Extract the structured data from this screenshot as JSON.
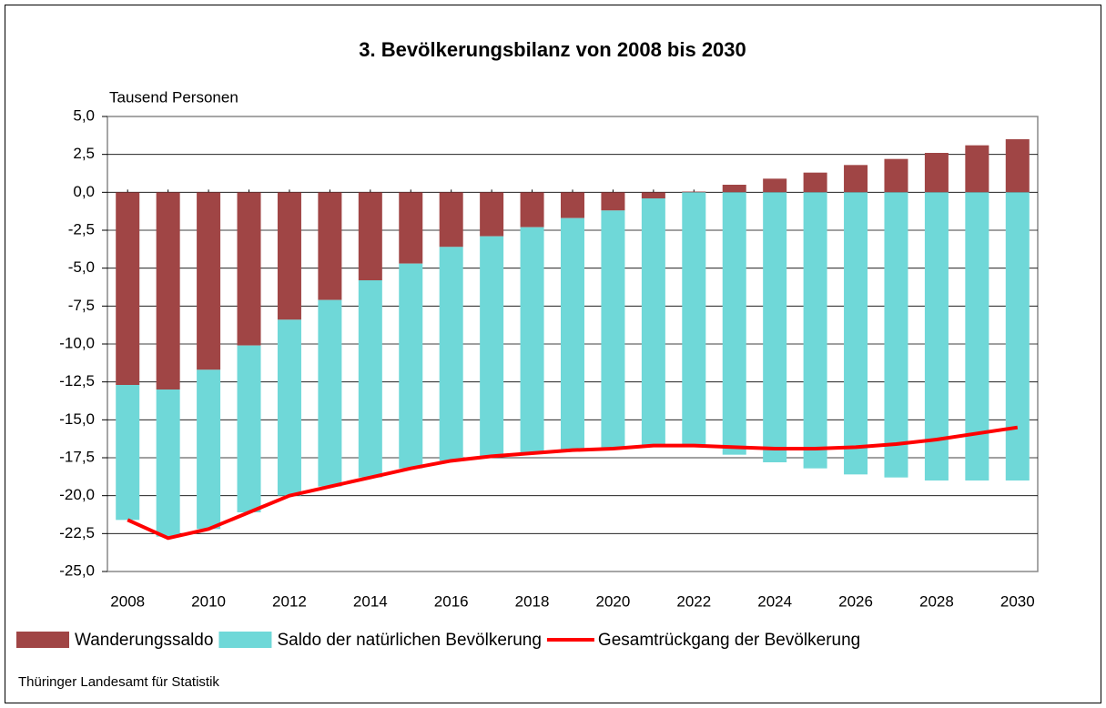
{
  "chart_data": {
    "type": "bar",
    "stacked": true,
    "title": "3. Bevölkerungsbilanz von 2008 bis 2030",
    "y_axis_label": "Tausend Personen",
    "source": "Thüringer Landesamt für Statistik",
    "categories": [
      "2008",
      null,
      "2010",
      null,
      "2012",
      null,
      "2014",
      null,
      "2016",
      null,
      "2018",
      null,
      "2020",
      null,
      "2022",
      null,
      "2024",
      null,
      "2026",
      null,
      "2028",
      null,
      "2030"
    ],
    "series": [
      {
        "name": "Wanderungssaldo",
        "color": "#a04545",
        "values": [
          -12.7,
          -13.0,
          -11.7,
          -10.1,
          -8.4,
          -7.1,
          -5.8,
          -4.7,
          -3.6,
          -2.9,
          -2.3,
          -1.7,
          -1.2,
          -0.4,
          0.05,
          0.5,
          0.9,
          1.3,
          1.8,
          2.2,
          2.6,
          3.1,
          3.5
        ]
      },
      {
        "name": "Saldo der natürlichen Bevölkerung",
        "color": "#6fd8d8",
        "values": [
          -8.9,
          -9.7,
          -10.5,
          -11.0,
          -11.6,
          -12.3,
          -13.0,
          -13.5,
          -14.1,
          -14.5,
          -14.9,
          -15.3,
          -15.7,
          -16.3,
          -16.7,
          -17.3,
          -17.8,
          -18.2,
          -18.6,
          -18.8,
          -19.0,
          -19.0,
          -19.0
        ]
      },
      {
        "name": "Gesamtrückgang der Bevölkerung",
        "type": "line",
        "color": "#ff0000",
        "values": [
          -21.6,
          -22.8,
          -22.2,
          -21.1,
          -20.0,
          -19.4,
          -18.8,
          -18.2,
          -17.7,
          -17.4,
          -17.2,
          -17.0,
          -16.9,
          -16.7,
          -16.7,
          -16.8,
          -16.9,
          -16.9,
          -16.8,
          -16.6,
          -16.3,
          -15.9,
          -15.5
        ]
      }
    ],
    "ylim": [
      -25,
      5
    ],
    "yticks": [
      {
        "value": -25,
        "label": "-25,0"
      },
      {
        "value": -22.5,
        "label": "-22,5"
      },
      {
        "value": -20,
        "label": "-20,0"
      },
      {
        "value": -17.5,
        "label": "-17,5"
      },
      {
        "value": -15,
        "label": "-15,0"
      },
      {
        "value": -12.5,
        "label": "-12,5"
      },
      {
        "value": -10,
        "label": "-10,0"
      },
      {
        "value": -7.5,
        "label": "-7,5"
      },
      {
        "value": -5,
        "label": "-5,0"
      },
      {
        "value": -2.5,
        "label": "-2,5"
      },
      {
        "value": 0,
        "label": "0,0"
      },
      {
        "value": 2.5,
        "label": "2,5"
      },
      {
        "value": 5,
        "label": "5,0"
      }
    ],
    "grid": true,
    "legend": "bottom"
  }
}
